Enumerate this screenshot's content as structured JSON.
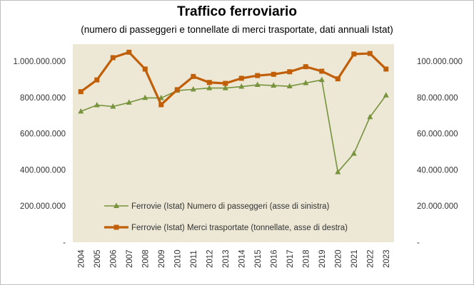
{
  "chart_data": {
    "type": "line",
    "title": "Traffico ferroviario",
    "subtitle": "(numero di passeggeri e tonnellate di merci trasportate, dati annuali Istat)",
    "plot_background": "#EDE8D6",
    "x": [
      "2004",
      "2005",
      "2006",
      "2007",
      "2008",
      "2009",
      "2010",
      "2011",
      "2012",
      "2013",
      "2014",
      "2015",
      "2016",
      "2017",
      "2018",
      "2019",
      "2020",
      "2021",
      "2022",
      "2023"
    ],
    "y_left": {
      "min": 0,
      "max": 1000000000,
      "tick_labels": [
        "-",
        "200.000.000",
        "400.000.000",
        "600.000.000",
        "800.000.000",
        "1.000.000.000"
      ]
    },
    "y_right": {
      "min": 0,
      "max": 100000000,
      "tick_labels": [
        "-",
        "20.000.000",
        "40.000.000",
        "60.000.000",
        "80.000.000",
        "100.000.000"
      ]
    },
    "series": [
      {
        "name": "Ferrovie (Istat) Numero di passeggeri (asse di sinistra)",
        "axis": "left",
        "color": "#77933C",
        "marker": "triangle",
        "values": [
          723000000,
          758000000,
          750000000,
          772000000,
          798000000,
          797000000,
          838000000,
          845000000,
          852000000,
          852000000,
          860000000,
          870000000,
          866000000,
          862000000,
          880000000,
          897000000,
          388000000,
          490000000,
          692000000,
          812000000
        ]
      },
      {
        "name": "Ferrovie (Istat) Merci trasportate (tonnellate, asse di destra)",
        "axis": "right",
        "color": "#C05F08",
        "marker": "square",
        "values": [
          83200000,
          89700000,
          102000000,
          105000000,
          95700000,
          76000000,
          84300000,
          91600000,
          88300000,
          87800000,
          90600000,
          92100000,
          92800000,
          94200000,
          97000000,
          94500000,
          90300000,
          104000000,
          104300000,
          95700000
        ]
      }
    ],
    "grid": false,
    "legend": "inside-bottom-left"
  }
}
